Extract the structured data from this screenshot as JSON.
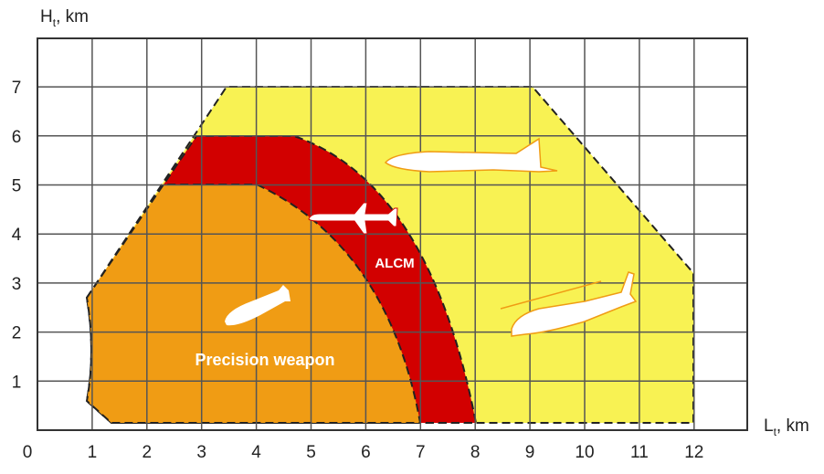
{
  "y_axis": {
    "label": "H",
    "subscript": "t",
    "unit": ", km",
    "ticks": [
      1,
      2,
      3,
      4,
      5,
      6,
      7
    ]
  },
  "x_axis": {
    "label": "L",
    "subscript": "t",
    "unit": ", km",
    "ticks": [
      0,
      1,
      2,
      3,
      4,
      5,
      6,
      7,
      8,
      9,
      10,
      11,
      12
    ]
  },
  "zones": {
    "alcm": "ALCM",
    "precision": "Precision weapon"
  }
}
